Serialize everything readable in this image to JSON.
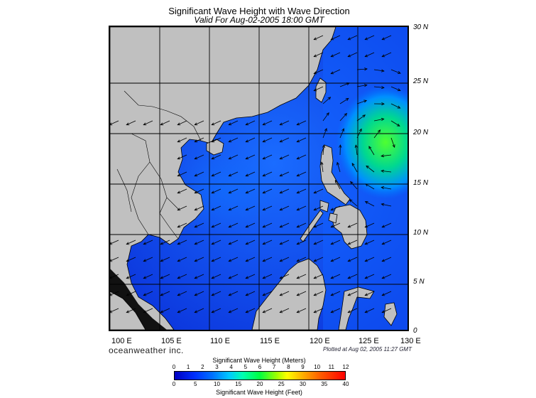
{
  "header": {
    "title": "Significant Wave Height with Wave Direction",
    "subtitle": "Valid For Aug-02-2005 18:00 GMT"
  },
  "axes": {
    "lat_labels": [
      "30 N",
      "25 N",
      "20 N",
      "15 N",
      "10 N",
      "5 N",
      "0"
    ],
    "lon_labels": [
      "100 E",
      "105 E",
      "110 E",
      "115 E",
      "120 E",
      "125 E",
      "130 E"
    ]
  },
  "footer": {
    "brand": "oceanweather inc.",
    "plotted": "Plotted at Aug 02, 2005 11:27 GMT"
  },
  "colorbar": {
    "meters_title": "Significant Wave Height (Meters)",
    "feet_title": "Significant Wave Height (Feet)",
    "meters_ticks": [
      "0",
      "1",
      "2",
      "3",
      "4",
      "5",
      "6",
      "7",
      "8",
      "9",
      "10",
      "11",
      "12"
    ],
    "feet_ticks": [
      "0",
      "5",
      "10",
      "15",
      "20",
      "25",
      "30",
      "35",
      "40"
    ]
  },
  "colors": {
    "land": "#c0c0c0",
    "sea_low": "#0030e0",
    "sea_mid": "#0070ff",
    "storm": "#40ff40"
  }
}
